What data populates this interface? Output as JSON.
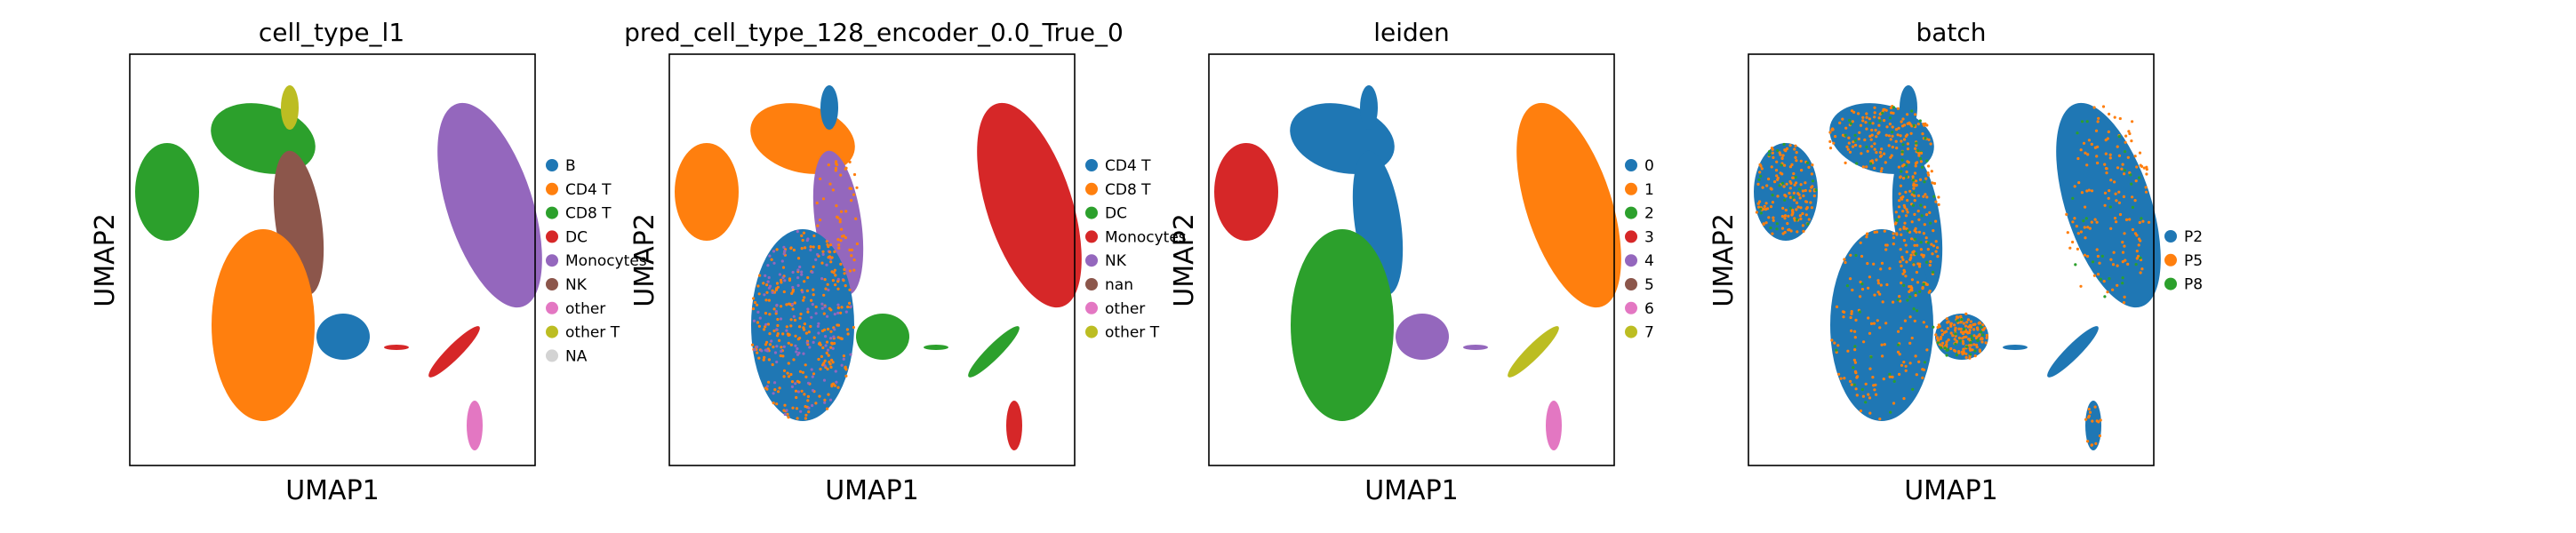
{
  "figure": {
    "panels": [
      {
        "title": "cell_type_l1",
        "xlabel": "UMAP1",
        "ylabel": "UMAP2",
        "legend": [
          {
            "label": "B",
            "color": "#1f77b4"
          },
          {
            "label": "CD4 T",
            "color": "#ff7f0e"
          },
          {
            "label": "CD8 T",
            "color": "#2ca02c"
          },
          {
            "label": "DC",
            "color": "#d62728"
          },
          {
            "label": "Monocytes",
            "color": "#9467bd"
          },
          {
            "label": "NK",
            "color": "#8c564b"
          },
          {
            "label": "other",
            "color": "#e377c2"
          },
          {
            "label": "other T",
            "color": "#bcbd22"
          },
          {
            "label": "NA",
            "color": "#d3d3d3"
          }
        ]
      },
      {
        "title": "pred_cell_type_128_encoder_0.0_True_0",
        "xlabel": "UMAP1",
        "ylabel": "UMAP2",
        "legend": [
          {
            "label": "CD4 T",
            "color": "#1f77b4"
          },
          {
            "label": "CD8 T",
            "color": "#ff7f0e"
          },
          {
            "label": "DC",
            "color": "#2ca02c"
          },
          {
            "label": "Monocytes",
            "color": "#d62728"
          },
          {
            "label": "NK",
            "color": "#9467bd"
          },
          {
            "label": "nan",
            "color": "#8c564b"
          },
          {
            "label": "other",
            "color": "#e377c2"
          },
          {
            "label": "other T",
            "color": "#bcbd22"
          }
        ]
      },
      {
        "title": "leiden",
        "xlabel": "UMAP1",
        "ylabel": "UMAP2",
        "legend": [
          {
            "label": "0",
            "color": "#1f77b4"
          },
          {
            "label": "1",
            "color": "#ff7f0e"
          },
          {
            "label": "2",
            "color": "#2ca02c"
          },
          {
            "label": "3",
            "color": "#d62728"
          },
          {
            "label": "4",
            "color": "#9467bd"
          },
          {
            "label": "5",
            "color": "#8c564b"
          },
          {
            "label": "6",
            "color": "#e377c2"
          },
          {
            "label": "7",
            "color": "#bcbd22"
          }
        ]
      },
      {
        "title": "batch",
        "xlabel": "UMAP1",
        "ylabel": "UMAP2",
        "legend": [
          {
            "label": "P2",
            "color": "#1f77b4"
          },
          {
            "label": "P5",
            "color": "#ff7f0e"
          },
          {
            "label": "P8",
            "color": "#2ca02c"
          }
        ]
      }
    ]
  },
  "chart_data": [
    {
      "type": "scatter",
      "title": "cell_type_l1",
      "xlabel": "UMAP1",
      "ylabel": "UMAP2",
      "grid": false,
      "legend_position": "right",
      "series": [
        {
          "name": "B",
          "color": "#1f77b4"
        },
        {
          "name": "CD4 T",
          "color": "#ff7f0e"
        },
        {
          "name": "CD8 T",
          "color": "#2ca02c"
        },
        {
          "name": "DC",
          "color": "#d62728"
        },
        {
          "name": "Monocytes",
          "color": "#9467bd"
        },
        {
          "name": "NK",
          "color": "#8c564b"
        },
        {
          "name": "other",
          "color": "#e377c2"
        },
        {
          "name": "other T",
          "color": "#bcbd22"
        },
        {
          "name": "NA",
          "color": "#d3d3d3"
        }
      ]
    },
    {
      "type": "scatter",
      "title": "pred_cell_type_128_encoder_0.0_True_0",
      "xlabel": "UMAP1",
      "ylabel": "UMAP2",
      "grid": false,
      "legend_position": "right",
      "series": [
        {
          "name": "CD4 T",
          "color": "#1f77b4"
        },
        {
          "name": "CD8 T",
          "color": "#ff7f0e"
        },
        {
          "name": "DC",
          "color": "#2ca02c"
        },
        {
          "name": "Monocytes",
          "color": "#d62728"
        },
        {
          "name": "NK",
          "color": "#9467bd"
        },
        {
          "name": "nan",
          "color": "#8c564b"
        },
        {
          "name": "other",
          "color": "#e377c2"
        },
        {
          "name": "other T",
          "color": "#bcbd22"
        }
      ]
    },
    {
      "type": "scatter",
      "title": "leiden",
      "xlabel": "UMAP1",
      "ylabel": "UMAP2",
      "grid": false,
      "legend_position": "right",
      "series": [
        {
          "name": "0",
          "color": "#1f77b4"
        },
        {
          "name": "1",
          "color": "#ff7f0e"
        },
        {
          "name": "2",
          "color": "#2ca02c"
        },
        {
          "name": "3",
          "color": "#d62728"
        },
        {
          "name": "4",
          "color": "#9467bd"
        },
        {
          "name": "5",
          "color": "#8c564b"
        },
        {
          "name": "6",
          "color": "#e377c2"
        },
        {
          "name": "7",
          "color": "#bcbd22"
        }
      ]
    },
    {
      "type": "scatter",
      "title": "batch",
      "xlabel": "UMAP1",
      "ylabel": "UMAP2",
      "grid": false,
      "legend_position": "right",
      "series": [
        {
          "name": "P2",
          "color": "#1f77b4"
        },
        {
          "name": "P5",
          "color": "#ff7f0e"
        },
        {
          "name": "P8",
          "color": "#2ca02c"
        }
      ]
    }
  ]
}
